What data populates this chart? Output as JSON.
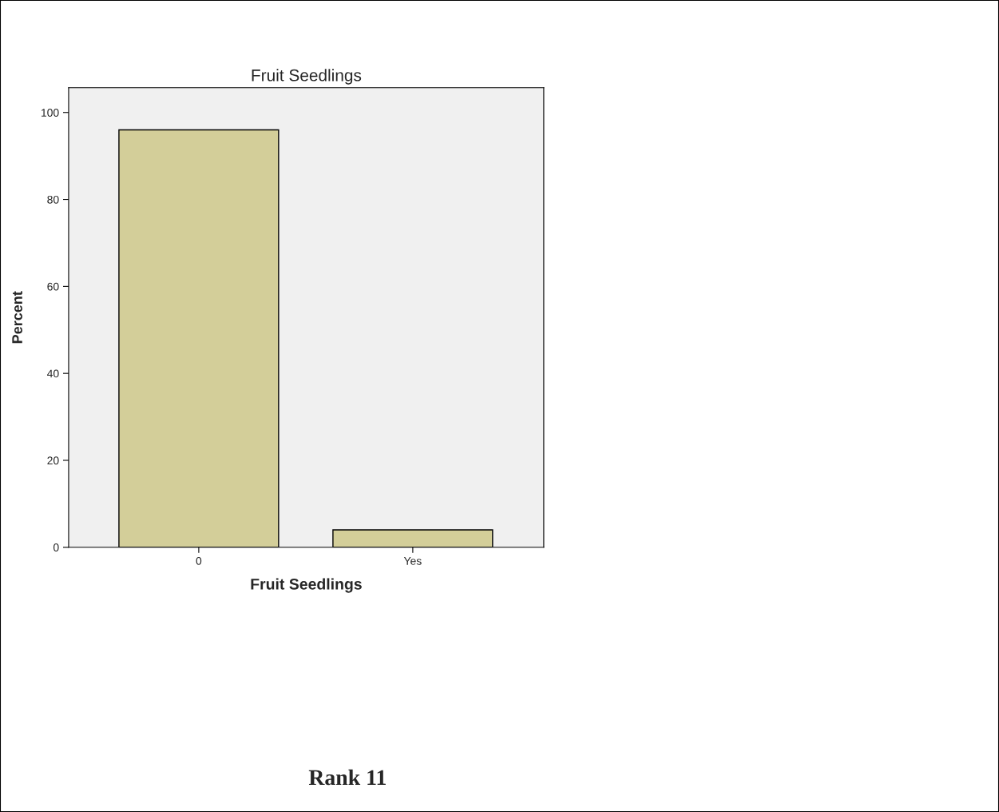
{
  "chart_data": {
    "type": "bar",
    "title": "Fruit Seedlings",
    "xlabel": "Fruit Seedlings",
    "ylabel": "Percent",
    "categories": [
      "0",
      "Yes"
    ],
    "values": [
      96,
      4
    ],
    "color": "#d3ce99",
    "ylim": [
      0,
      105.7
    ],
    "yticks": [
      0,
      20,
      40,
      60,
      80,
      100
    ],
    "grid": false,
    "annotations": [
      "Rank 11"
    ]
  }
}
